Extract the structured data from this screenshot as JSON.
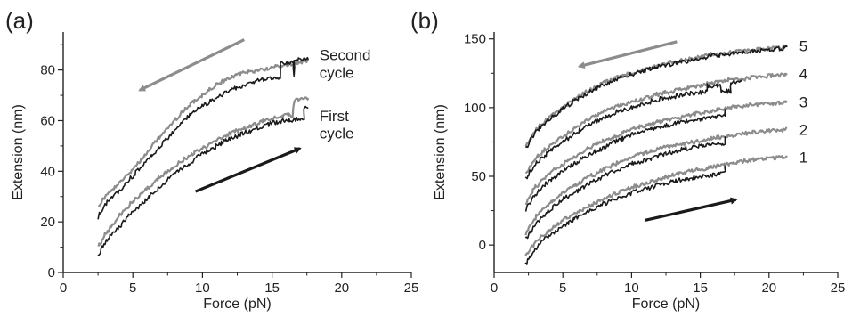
{
  "colors": {
    "dark": "#1a1a1a",
    "light": "#8c8c8c",
    "axis": "#222222"
  },
  "chart_data": [
    {
      "type": "line",
      "panel_label": "(a)",
      "xlabel": "Force (pN)",
      "ylabel": "Extension (nm)",
      "xlim": [
        0,
        25
      ],
      "ylim": [
        0,
        95
      ],
      "xticks": [
        0,
        5,
        10,
        15,
        20,
        25
      ],
      "yticks": [
        0,
        20,
        40,
        60,
        80
      ],
      "grid": false,
      "annotations": [
        {
          "text": "Second",
          "x": 18.4,
          "y": 86
        },
        {
          "text": "cycle",
          "x": 18.4,
          "y": 79
        },
        {
          "text": "First",
          "x": 18.4,
          "y": 62
        },
        {
          "text": "cycle",
          "x": 18.4,
          "y": 55
        }
      ],
      "arrows": [
        {
          "color": "light",
          "from": [
            13,
            92
          ],
          "to": [
            5.5,
            72
          ]
        },
        {
          "color": "dark",
          "from": [
            9.5,
            32
          ],
          "to": [
            17,
            49
          ]
        }
      ],
      "series": [
        {
          "color": "light",
          "x": [
            2.5,
            3,
            4,
            5,
            6,
            7,
            8,
            9,
            10,
            11,
            12,
            13,
            14,
            15,
            16,
            17,
            17.6
          ],
          "y": [
            26,
            30,
            35,
            41,
            47,
            54,
            60,
            66,
            70,
            74,
            77,
            79,
            80,
            81,
            82,
            83,
            84
          ]
        },
        {
          "color": "dark",
          "x": [
            2.5,
            3,
            4,
            5,
            6,
            7,
            8,
            9,
            10,
            11,
            12,
            13,
            14,
            15,
            15.6,
            15.6,
            16.5,
            16.6,
            16.6,
            17.6
          ],
          "y": [
            22,
            27,
            32,
            38,
            44,
            50,
            56,
            62,
            66,
            69,
            72,
            74,
            76,
            77,
            77,
            83,
            83,
            77,
            84,
            84
          ]
        },
        {
          "color": "light",
          "x": [
            2.5,
            3,
            4,
            5,
            6,
            7,
            8,
            9,
            10,
            11,
            12,
            13,
            14,
            15,
            16,
            16.5,
            16.6,
            17.6
          ],
          "y": [
            10,
            15,
            22,
            28,
            33,
            38,
            42,
            46,
            49,
            52,
            55,
            57,
            59,
            61,
            62,
            62,
            68,
            69
          ]
        },
        {
          "color": "dark",
          "x": [
            2.5,
            3,
            4,
            5,
            6,
            7,
            8,
            9,
            10,
            11,
            12,
            13,
            14,
            15,
            16,
            17,
            17.3,
            17.3,
            17.6
          ],
          "y": [
            7,
            12,
            18,
            24,
            29,
            34,
            39,
            43,
            47,
            50,
            53,
            55,
            57,
            59,
            60,
            61,
            61,
            65,
            65
          ]
        }
      ]
    },
    {
      "type": "line",
      "panel_label": "(b)",
      "xlabel": "Force (pN)",
      "ylabel": "Extension (nm)",
      "xlim": [
        0,
        25
      ],
      "ylim": [
        -20,
        155
      ],
      "xticks": [
        0,
        5,
        10,
        15,
        20,
        25
      ],
      "yticks": [
        0,
        50,
        100,
        150
      ],
      "grid": false,
      "annotations": [
        {
          "text": "5",
          "x": 22.2,
          "y": 145
        },
        {
          "text": "4",
          "x": 22.2,
          "y": 125
        },
        {
          "text": "3",
          "x": 22.2,
          "y": 104
        },
        {
          "text": "2",
          "x": 22.2,
          "y": 84
        },
        {
          "text": "1",
          "x": 22.2,
          "y": 64
        }
      ],
      "arrows": [
        {
          "color": "light",
          "from": [
            13.3,
            148
          ],
          "to": [
            6.2,
            130
          ]
        },
        {
          "color": "dark",
          "from": [
            11,
            18
          ],
          "to": [
            17.6,
            33
          ]
        }
      ],
      "series": [
        {
          "color": "light",
          "x": [
            2.3,
            3,
            4,
            5,
            6,
            7,
            8,
            9,
            10,
            11,
            12,
            13,
            14,
            15,
            16,
            17,
            18,
            19,
            20,
            21,
            21.3
          ],
          "y": [
            -8,
            2,
            11,
            18,
            24,
            29,
            34,
            38,
            42,
            45,
            48,
            51,
            53,
            55,
            57,
            59,
            61,
            62,
            63,
            64,
            65
          ]
        },
        {
          "color": "dark",
          "x": [
            2.3,
            3,
            4,
            5,
            6,
            7,
            8,
            9,
            10,
            11,
            12,
            13,
            14,
            15,
            16,
            16.8,
            16.8
          ],
          "y": [
            -14,
            -3,
            7,
            14,
            20,
            25,
            30,
            34,
            38,
            41,
            44,
            46,
            48,
            50,
            51,
            52,
            58
          ]
        },
        {
          "color": "light",
          "x": [
            2.3,
            3,
            4,
            5,
            6,
            7,
            8,
            9,
            10,
            11,
            12,
            13,
            14,
            15,
            16,
            17,
            18,
            19,
            20,
            21,
            21.3
          ],
          "y": [
            8,
            20,
            30,
            38,
            44,
            50,
            55,
            60,
            64,
            67,
            70,
            72,
            74,
            76,
            78,
            79,
            81,
            82,
            83,
            84,
            85
          ]
        },
        {
          "color": "dark",
          "x": [
            2.3,
            3,
            4,
            5,
            6,
            7,
            8,
            9,
            10,
            11,
            12,
            13,
            14,
            15,
            16,
            16.8,
            16.8
          ],
          "y": [
            4,
            15,
            25,
            33,
            39,
            45,
            50,
            55,
            59,
            62,
            65,
            68,
            70,
            72,
            73,
            74,
            79
          ]
        },
        {
          "color": "light",
          "x": [
            2.3,
            3,
            4,
            5,
            6,
            7,
            8,
            9,
            10,
            11,
            12,
            13,
            14,
            15,
            16,
            17,
            18,
            19,
            20,
            21,
            21.3
          ],
          "y": [
            30,
            42,
            52,
            59,
            65,
            71,
            76,
            80,
            84,
            87,
            90,
            92,
            94,
            96,
            98,
            100,
            101,
            102,
            103,
            104,
            105
          ]
        },
        {
          "color": "dark",
          "x": [
            2.3,
            3,
            4,
            5,
            6,
            7,
            8,
            9,
            10,
            11,
            12,
            13,
            14,
            15,
            16,
            16.8,
            16.8
          ],
          "y": [
            26,
            37,
            47,
            54,
            60,
            66,
            71,
            76,
            80,
            83,
            86,
            88,
            90,
            92,
            93,
            94,
            99
          ]
        },
        {
          "color": "light",
          "x": [
            2.3,
            3,
            4,
            5,
            6,
            7,
            8,
            9,
            10,
            11,
            12,
            13,
            14,
            15,
            16,
            17,
            18,
            19,
            20,
            21,
            21.3
          ],
          "y": [
            52,
            63,
            72,
            79,
            86,
            92,
            97,
            101,
            104,
            107,
            110,
            112,
            114,
            116,
            118,
            120,
            121,
            122,
            123,
            124,
            125
          ]
        },
        {
          "color": "dark",
          "x": [
            2.3,
            3,
            4,
            5,
            6,
            7,
            8,
            9,
            10,
            11,
            12,
            13,
            14,
            15,
            15.5,
            15.5,
            16.5,
            16.5,
            17.2,
            17.2,
            18
          ],
          "y": [
            48,
            59,
            68,
            75,
            82,
            88,
            93,
            97,
            100,
            103,
            106,
            108,
            110,
            111,
            111,
            116,
            116,
            112,
            112,
            118,
            119
          ]
        },
        {
          "color": "light",
          "x": [
            2.3,
            3,
            4,
            5,
            6,
            7,
            8,
            9,
            10,
            11,
            12,
            13,
            14,
            15,
            16,
            17,
            18,
            19,
            20,
            21,
            21.3
          ],
          "y": [
            72,
            84,
            93,
            100,
            107,
            113,
            118,
            122,
            125,
            128,
            131,
            133,
            135,
            137,
            139,
            140,
            141,
            142,
            143,
            144,
            145
          ]
        },
        {
          "color": "dark",
          "x": [
            2.3,
            3,
            4,
            5,
            6,
            7,
            8,
            9,
            10,
            11,
            12,
            13,
            14,
            15,
            16,
            17,
            18,
            19,
            20,
            21,
            21.3
          ],
          "y": [
            70,
            82,
            91,
            99,
            106,
            112,
            117,
            121,
            124,
            127,
            130,
            132,
            134,
            136,
            138,
            139,
            140,
            141,
            142,
            143,
            144
          ]
        }
      ]
    }
  ]
}
